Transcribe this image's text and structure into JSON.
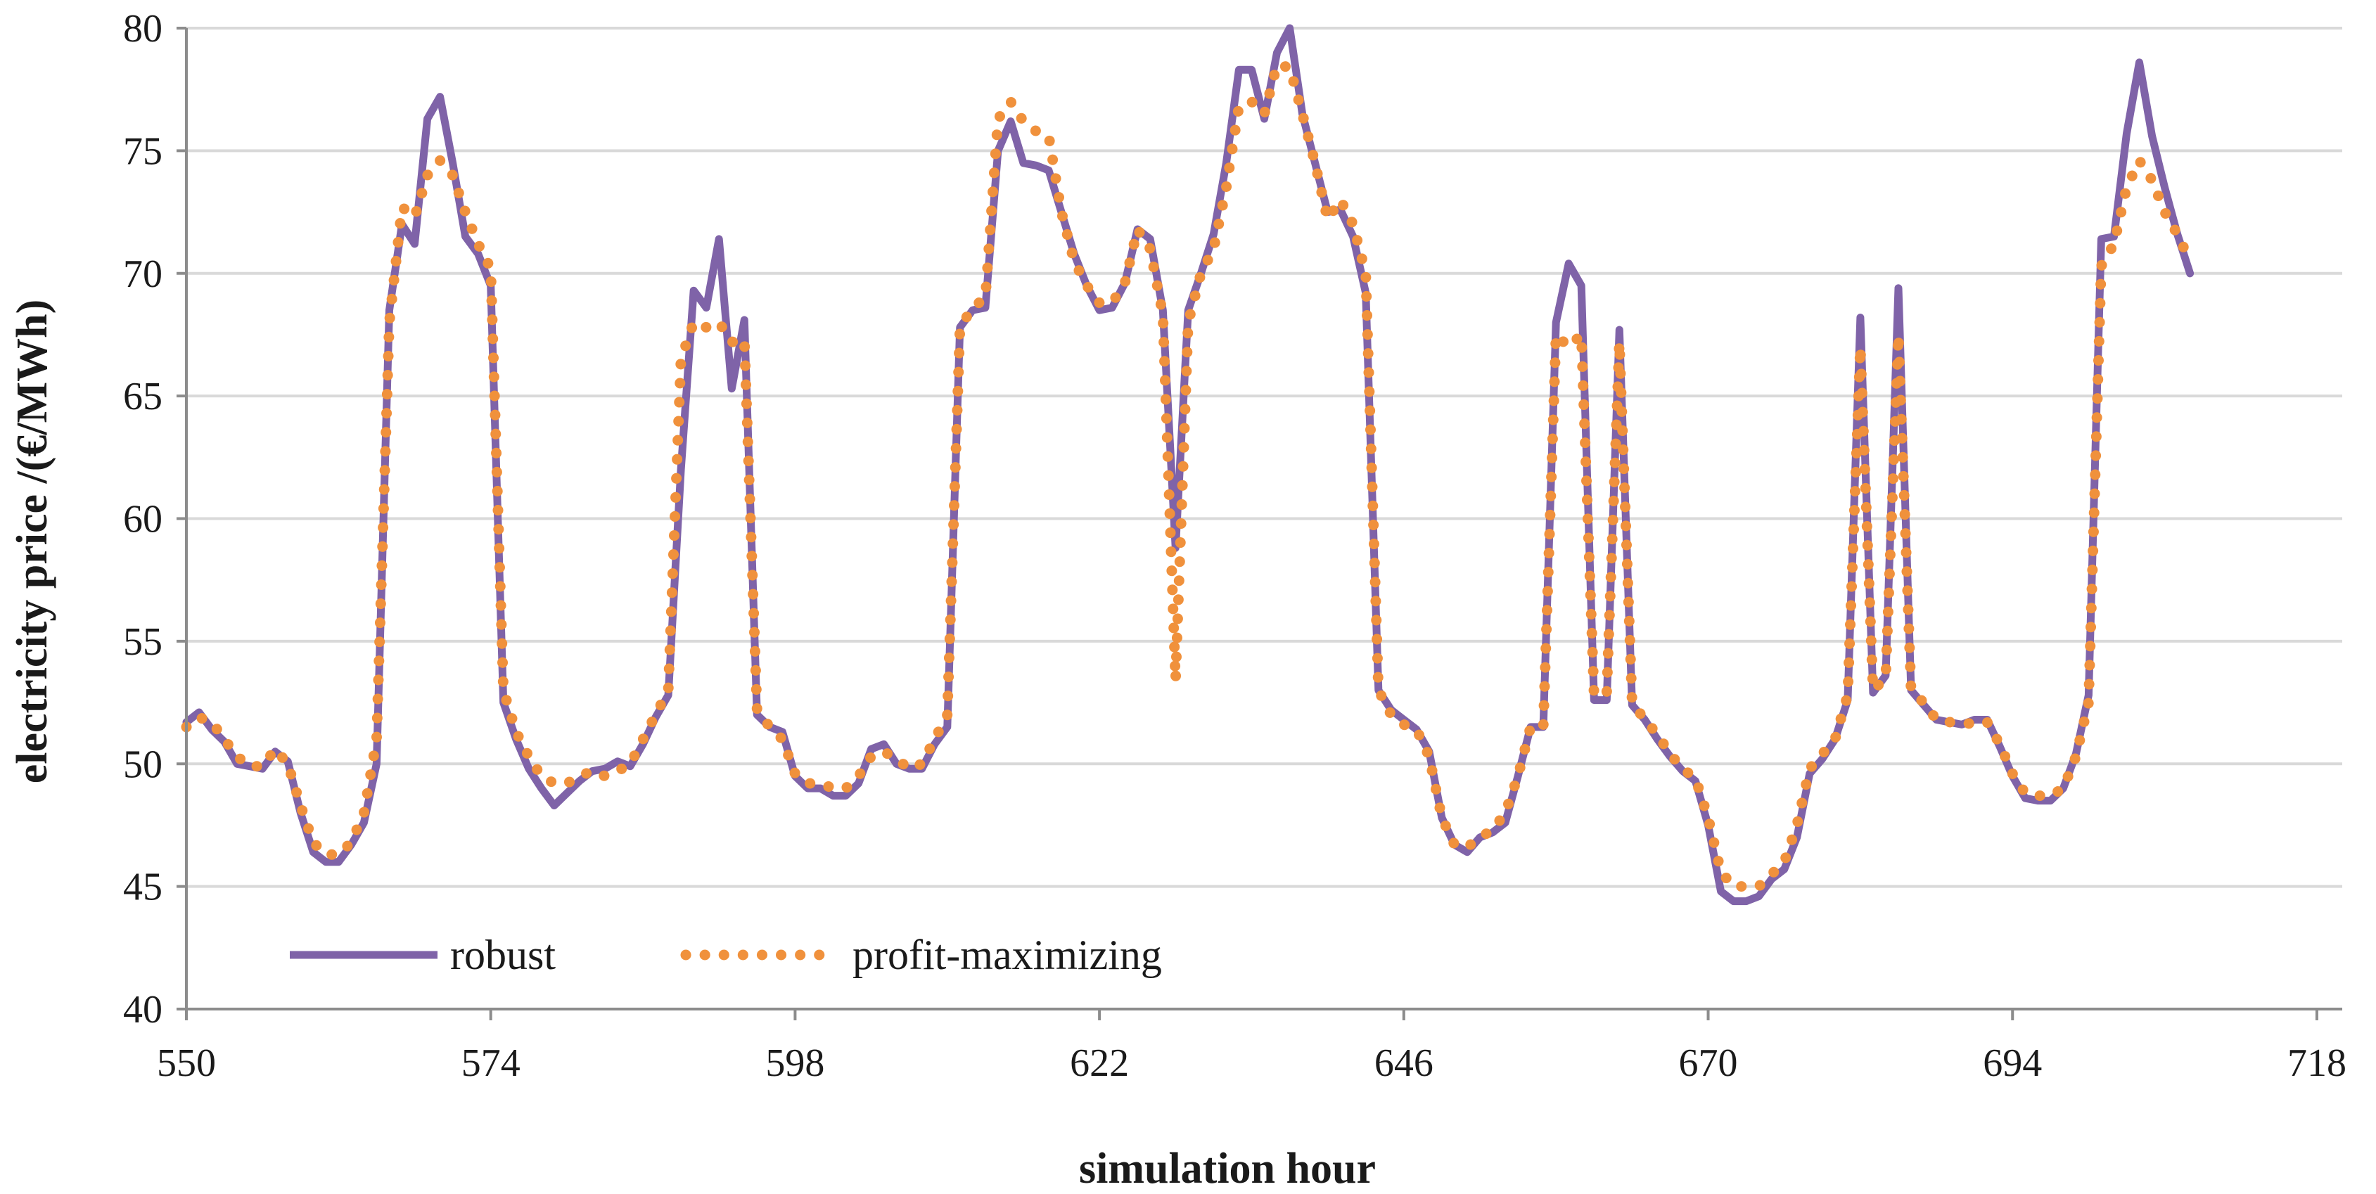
{
  "chart_data": {
    "type": "line",
    "title": "",
    "xlabel": "simulation  hour",
    "ylabel": "electricity  price  /(€/MWh)",
    "xlim": [
      550,
      720
    ],
    "ylim": [
      40,
      80
    ],
    "x_ticks": [
      550,
      574,
      598,
      622,
      646,
      670,
      694,
      718
    ],
    "y_ticks": [
      40,
      45,
      50,
      55,
      60,
      65,
      70,
      75,
      80
    ],
    "grid": true,
    "legend_position": "bottom-left",
    "series": [
      {
        "name": "robust",
        "style": "solid",
        "color": "#7f63a8",
        "points": [
          [
            550,
            51.7
          ],
          [
            551,
            52.1
          ],
          [
            552,
            51.4
          ],
          [
            553,
            50.9
          ],
          [
            554,
            50.0
          ],
          [
            555,
            49.9
          ],
          [
            556,
            49.8
          ],
          [
            557,
            50.5
          ],
          [
            558,
            50.1
          ],
          [
            559,
            48.0
          ],
          [
            560,
            46.4
          ],
          [
            561,
            46.0
          ],
          [
            562,
            46.0
          ],
          [
            563,
            46.7
          ],
          [
            564,
            47.6
          ],
          [
            565,
            50.0
          ],
          [
            566,
            68.5
          ],
          [
            567,
            72.0
          ],
          [
            568,
            71.2
          ],
          [
            569,
            76.3
          ],
          [
            570,
            77.2
          ],
          [
            571,
            74.5
          ],
          [
            572,
            71.5
          ],
          [
            573,
            70.8
          ],
          [
            574,
            69.5
          ],
          [
            575,
            52.5
          ],
          [
            576,
            51.0
          ],
          [
            577,
            49.8
          ],
          [
            578,
            49.0
          ],
          [
            579,
            48.3
          ],
          [
            580,
            48.8
          ],
          [
            581,
            49.3
          ],
          [
            582,
            49.7
          ],
          [
            583,
            49.8
          ],
          [
            584,
            50.1
          ],
          [
            585,
            49.9
          ],
          [
            586,
            50.8
          ],
          [
            587,
            51.9
          ],
          [
            588,
            52.8
          ],
          [
            589,
            62.0
          ],
          [
            590,
            69.3
          ],
          [
            591,
            68.6
          ],
          [
            592,
            71.4
          ],
          [
            593,
            65.3
          ],
          [
            594,
            68.1
          ],
          [
            595,
            52.0
          ],
          [
            596,
            51.5
          ],
          [
            597,
            51.3
          ],
          [
            598,
            49.5
          ],
          [
            599,
            49.0
          ],
          [
            600,
            49.0
          ],
          [
            601,
            48.7
          ],
          [
            602,
            48.7
          ],
          [
            603,
            49.2
          ],
          [
            604,
            50.6
          ],
          [
            605,
            50.8
          ],
          [
            606,
            50.0
          ],
          [
            607,
            49.8
          ],
          [
            608,
            49.8
          ],
          [
            609,
            50.8
          ],
          [
            610,
            51.5
          ],
          [
            611,
            67.8
          ],
          [
            612,
            68.5
          ],
          [
            613,
            68.6
          ],
          [
            614,
            75.0
          ],
          [
            615,
            76.2
          ],
          [
            616,
            74.5
          ],
          [
            617,
            74.4
          ],
          [
            618,
            74.2
          ],
          [
            619,
            72.5
          ],
          [
            620,
            70.8
          ],
          [
            621,
            69.5
          ],
          [
            622,
            68.5
          ],
          [
            623,
            68.6
          ],
          [
            624,
            69.6
          ],
          [
            625,
            71.8
          ],
          [
            626,
            71.4
          ],
          [
            627,
            68.5
          ],
          [
            628,
            58.8
          ],
          [
            629,
            68.5
          ],
          [
            630,
            70.0
          ],
          [
            631,
            71.6
          ],
          [
            632,
            74.5
          ],
          [
            633,
            78.3
          ],
          [
            634,
            78.3
          ],
          [
            635,
            76.3
          ],
          [
            636,
            79.0
          ],
          [
            637,
            80.0
          ],
          [
            638,
            76.5
          ],
          [
            639,
            74.5
          ],
          [
            640,
            72.5
          ],
          [
            641,
            72.6
          ],
          [
            642,
            71.5
          ],
          [
            643,
            69.2
          ],
          [
            644,
            53.0
          ],
          [
            645,
            52.2
          ],
          [
            646,
            51.8
          ],
          [
            647,
            51.4
          ],
          [
            648,
            50.5
          ],
          [
            649,
            47.8
          ],
          [
            650,
            46.7
          ],
          [
            651,
            46.4
          ],
          [
            652,
            47.0
          ],
          [
            653,
            47.2
          ],
          [
            654,
            47.6
          ],
          [
            655,
            49.5
          ],
          [
            656,
            51.5
          ],
          [
            657,
            51.5
          ],
          [
            658,
            68.0
          ],
          [
            659,
            70.4
          ],
          [
            660,
            69.5
          ],
          [
            661,
            52.6
          ],
          [
            662,
            52.6
          ],
          [
            663,
            67.7
          ],
          [
            664,
            52.4
          ],
          [
            665,
            51.8
          ],
          [
            666,
            51.0
          ],
          [
            667,
            50.3
          ],
          [
            668,
            49.7
          ],
          [
            669,
            49.3
          ],
          [
            670,
            47.5
          ],
          [
            671,
            44.8
          ],
          [
            672,
            44.4
          ],
          [
            673,
            44.4
          ],
          [
            674,
            44.6
          ],
          [
            675,
            45.3
          ],
          [
            676,
            45.7
          ],
          [
            677,
            47.0
          ],
          [
            678,
            49.6
          ],
          [
            679,
            50.2
          ],
          [
            680,
            51.0
          ],
          [
            681,
            52.6
          ],
          [
            682,
            68.2
          ],
          [
            683,
            52.9
          ],
          [
            684,
            53.6
          ],
          [
            685,
            69.4
          ],
          [
            686,
            53.0
          ],
          [
            687,
            52.4
          ],
          [
            688,
            51.8
          ],
          [
            689,
            51.7
          ],
          [
            690,
            51.6
          ],
          [
            691,
            51.8
          ],
          [
            692,
            51.8
          ],
          [
            693,
            50.7
          ],
          [
            694,
            49.5
          ],
          [
            695,
            48.6
          ],
          [
            696,
            48.5
          ],
          [
            697,
            48.5
          ],
          [
            698,
            49.0
          ],
          [
            699,
            50.4
          ],
          [
            700,
            52.8
          ],
          [
            701,
            71.4
          ],
          [
            702,
            71.5
          ],
          [
            703,
            75.7
          ],
          [
            704,
            78.6
          ],
          [
            705,
            75.6
          ],
          [
            706,
            73.5
          ],
          [
            707,
            71.6
          ],
          [
            708,
            70.0
          ]
        ]
      },
      {
        "name": "profit-maximizing",
        "style": "dotted",
        "color": "#f0913c",
        "points": [
          [
            550,
            51.5
          ],
          [
            551,
            51.9
          ],
          [
            552,
            51.7
          ],
          [
            553,
            51.0
          ],
          [
            554,
            50.3
          ],
          [
            555,
            49.9
          ],
          [
            556,
            49.9
          ],
          [
            557,
            50.6
          ],
          [
            558,
            50.0
          ],
          [
            559,
            48.3
          ],
          [
            560,
            46.8
          ],
          [
            561,
            46.3
          ],
          [
            562,
            46.3
          ],
          [
            563,
            46.8
          ],
          [
            564,
            48.0
          ],
          [
            565,
            51.0
          ],
          [
            566,
            68.0
          ],
          [
            567,
            72.7
          ],
          [
            568,
            72.3
          ],
          [
            569,
            74.0
          ],
          [
            570,
            74.6
          ],
          [
            571,
            74.0
          ],
          [
            572,
            72.5
          ],
          [
            573,
            71.2
          ],
          [
            574,
            70.2
          ],
          [
            575,
            53.0
          ],
          [
            576,
            51.3
          ],
          [
            577,
            50.3
          ],
          [
            578,
            49.5
          ],
          [
            579,
            49.2
          ],
          [
            580,
            49.2
          ],
          [
            581,
            49.5
          ],
          [
            582,
            49.7
          ],
          [
            583,
            49.5
          ],
          [
            584,
            49.7
          ],
          [
            585,
            50.0
          ],
          [
            586,
            51.0
          ],
          [
            587,
            52.0
          ],
          [
            588,
            53.0
          ],
          [
            589,
            66.5
          ],
          [
            590,
            68.0
          ],
          [
            591,
            67.8
          ],
          [
            592,
            68.0
          ],
          [
            593,
            67.2
          ],
          [
            594,
            67.3
          ],
          [
            595,
            52.2
          ],
          [
            596,
            51.5
          ],
          [
            597,
            51.0
          ],
          [
            598,
            49.6
          ],
          [
            599,
            49.2
          ],
          [
            600,
            49.2
          ],
          [
            601,
            49.0
          ],
          [
            602,
            49.0
          ],
          [
            603,
            49.5
          ],
          [
            604,
            50.3
          ],
          [
            605,
            50.5
          ],
          [
            606,
            50.2
          ],
          [
            607,
            49.8
          ],
          [
            608,
            50.0
          ],
          [
            609,
            51.0
          ],
          [
            610,
            52.0
          ],
          [
            611,
            67.8
          ],
          [
            612,
            68.6
          ],
          [
            613,
            69.0
          ],
          [
            614,
            76.3
          ],
          [
            615,
            77.0
          ],
          [
            616,
            76.2
          ],
          [
            617,
            75.8
          ],
          [
            618,
            75.6
          ],
          [
            619,
            72.5
          ],
          [
            620,
            70.5
          ],
          [
            621,
            69.5
          ],
          [
            622,
            68.8
          ],
          [
            623,
            68.8
          ],
          [
            624,
            69.6
          ],
          [
            625,
            71.8
          ],
          [
            626,
            71.0
          ],
          [
            627,
            68.3
          ],
          [
            628,
            53.4
          ],
          [
            629,
            68.0
          ],
          [
            630,
            70.0
          ],
          [
            631,
            71.0
          ],
          [
            632,
            73.5
          ],
          [
            633,
            76.8
          ],
          [
            634,
            77.0
          ],
          [
            635,
            76.5
          ],
          [
            636,
            78.5
          ],
          [
            637,
            78.4
          ],
          [
            638,
            76.5
          ],
          [
            639,
            74.5
          ],
          [
            640,
            72.2
          ],
          [
            641,
            73.0
          ],
          [
            642,
            72.0
          ],
          [
            643,
            70.0
          ],
          [
            644,
            53.0
          ],
          [
            645,
            52.0
          ],
          [
            646,
            51.6
          ],
          [
            647,
            51.4
          ],
          [
            648,
            50.3
          ],
          [
            649,
            47.8
          ],
          [
            650,
            46.7
          ],
          [
            651,
            46.6
          ],
          [
            652,
            47.0
          ],
          [
            653,
            47.3
          ],
          [
            654,
            48.0
          ],
          [
            655,
            49.5
          ],
          [
            656,
            51.5
          ],
          [
            657,
            51.5
          ],
          [
            658,
            67.5
          ],
          [
            659,
            67.0
          ],
          [
            660,
            67.5
          ],
          [
            661,
            52.8
          ],
          [
            662,
            52.9
          ],
          [
            663,
            67.2
          ],
          [
            664,
            52.5
          ],
          [
            665,
            51.8
          ],
          [
            666,
            51.2
          ],
          [
            667,
            50.4
          ],
          [
            668,
            49.8
          ],
          [
            669,
            49.4
          ],
          [
            670,
            47.8
          ],
          [
            671,
            45.6
          ],
          [
            672,
            45.0
          ],
          [
            673,
            45.0
          ],
          [
            674,
            45.0
          ],
          [
            675,
            45.5
          ],
          [
            676,
            46.0
          ],
          [
            677,
            47.5
          ],
          [
            678,
            49.8
          ],
          [
            679,
            50.4
          ],
          [
            680,
            51.0
          ],
          [
            681,
            52.8
          ],
          [
            682,
            67.0
          ],
          [
            683,
            53.0
          ],
          [
            684,
            53.5
          ],
          [
            685,
            67.5
          ],
          [
            686,
            53.0
          ],
          [
            687,
            52.5
          ],
          [
            688,
            51.8
          ],
          [
            689,
            51.7
          ],
          [
            690,
            51.7
          ],
          [
            691,
            51.6
          ],
          [
            692,
            51.7
          ],
          [
            693,
            50.8
          ],
          [
            694,
            49.6
          ],
          [
            695,
            48.8
          ],
          [
            696,
            48.7
          ],
          [
            697,
            48.7
          ],
          [
            698,
            49.0
          ],
          [
            699,
            50.3
          ],
          [
            700,
            52.5
          ],
          [
            701,
            70.3
          ],
          [
            702,
            71.2
          ],
          [
            703,
            73.5
          ],
          [
            704,
            74.6
          ],
          [
            705,
            73.8
          ],
          [
            706,
            72.5
          ],
          [
            707,
            71.6
          ],
          [
            708,
            70.5
          ]
        ]
      }
    ]
  }
}
